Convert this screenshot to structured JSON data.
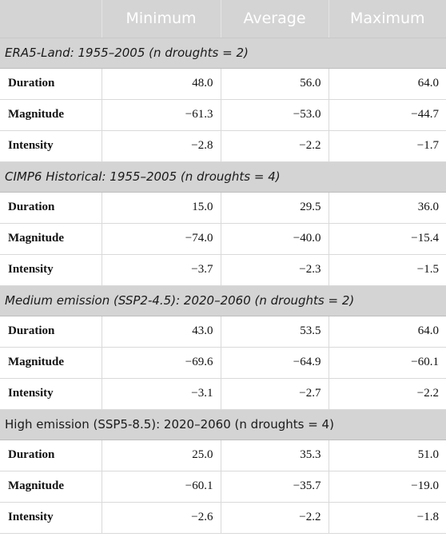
{
  "header": [
    "",
    "Minimum",
    "Average",
    "Maximum"
  ],
  "sections": [
    {
      "title_italic": "ERA5-Land: 1955–2005 (n droughts = 2)",
      "title_plain": "",
      "rows": [
        {
          "label": "Duration",
          "min": "48.0",
          "avg": "56.0",
          "max": "64.0"
        },
        {
          "label": "Magnitude",
          "min": "−61.3",
          "avg": "−53.0",
          "max": "−44.7"
        },
        {
          "label": "Intensity",
          "min": "−2.8",
          "avg": "−2.2",
          "max": "−1.7"
        }
      ]
    },
    {
      "title_italic": "CIMP6 Historical: 1955–2005 (n droughts = 4)",
      "title_plain": "",
      "rows": [
        {
          "label": "Duration",
          "min": "15.0",
          "avg": "29.5",
          "max": "36.0"
        },
        {
          "label": "Magnitude",
          "min": "−74.0",
          "avg": "−40.0",
          "max": "−15.4"
        },
        {
          "label": "Intensity",
          "min": "−3.7",
          "avg": "−2.3",
          "max": "−1.5"
        }
      ]
    },
    {
      "title_italic": "Medium emission (SSP2-4.5): 2020–2060 (n droughts = 2)",
      "title_plain": "",
      "rows": [
        {
          "label": "Duration",
          "min": "43.0",
          "avg": "53.5",
          "max": "64.0"
        },
        {
          "label": "Magnitude",
          "min": "−69.6",
          "avg": "−64.9",
          "max": "−60.1"
        },
        {
          "label": "Intensity",
          "min": "−3.1",
          "avg": "−2.7",
          "max": "−2.2"
        }
      ]
    },
    {
      "title_italic": "",
      "title_plain": "High emission (SSP5-8.5): 2020–2060 (n droughts = 4)",
      "rows": [
        {
          "label": "Duration",
          "min": "25.0",
          "avg": "35.3",
          "max": "51.0"
        },
        {
          "label": "Magnitude",
          "min": "−60.1",
          "avg": "−35.7",
          "max": "−19.0"
        },
        {
          "label": "Intensity",
          "min": "−2.6",
          "avg": "−2.2",
          "max": "−1.8"
        }
      ]
    }
  ]
}
